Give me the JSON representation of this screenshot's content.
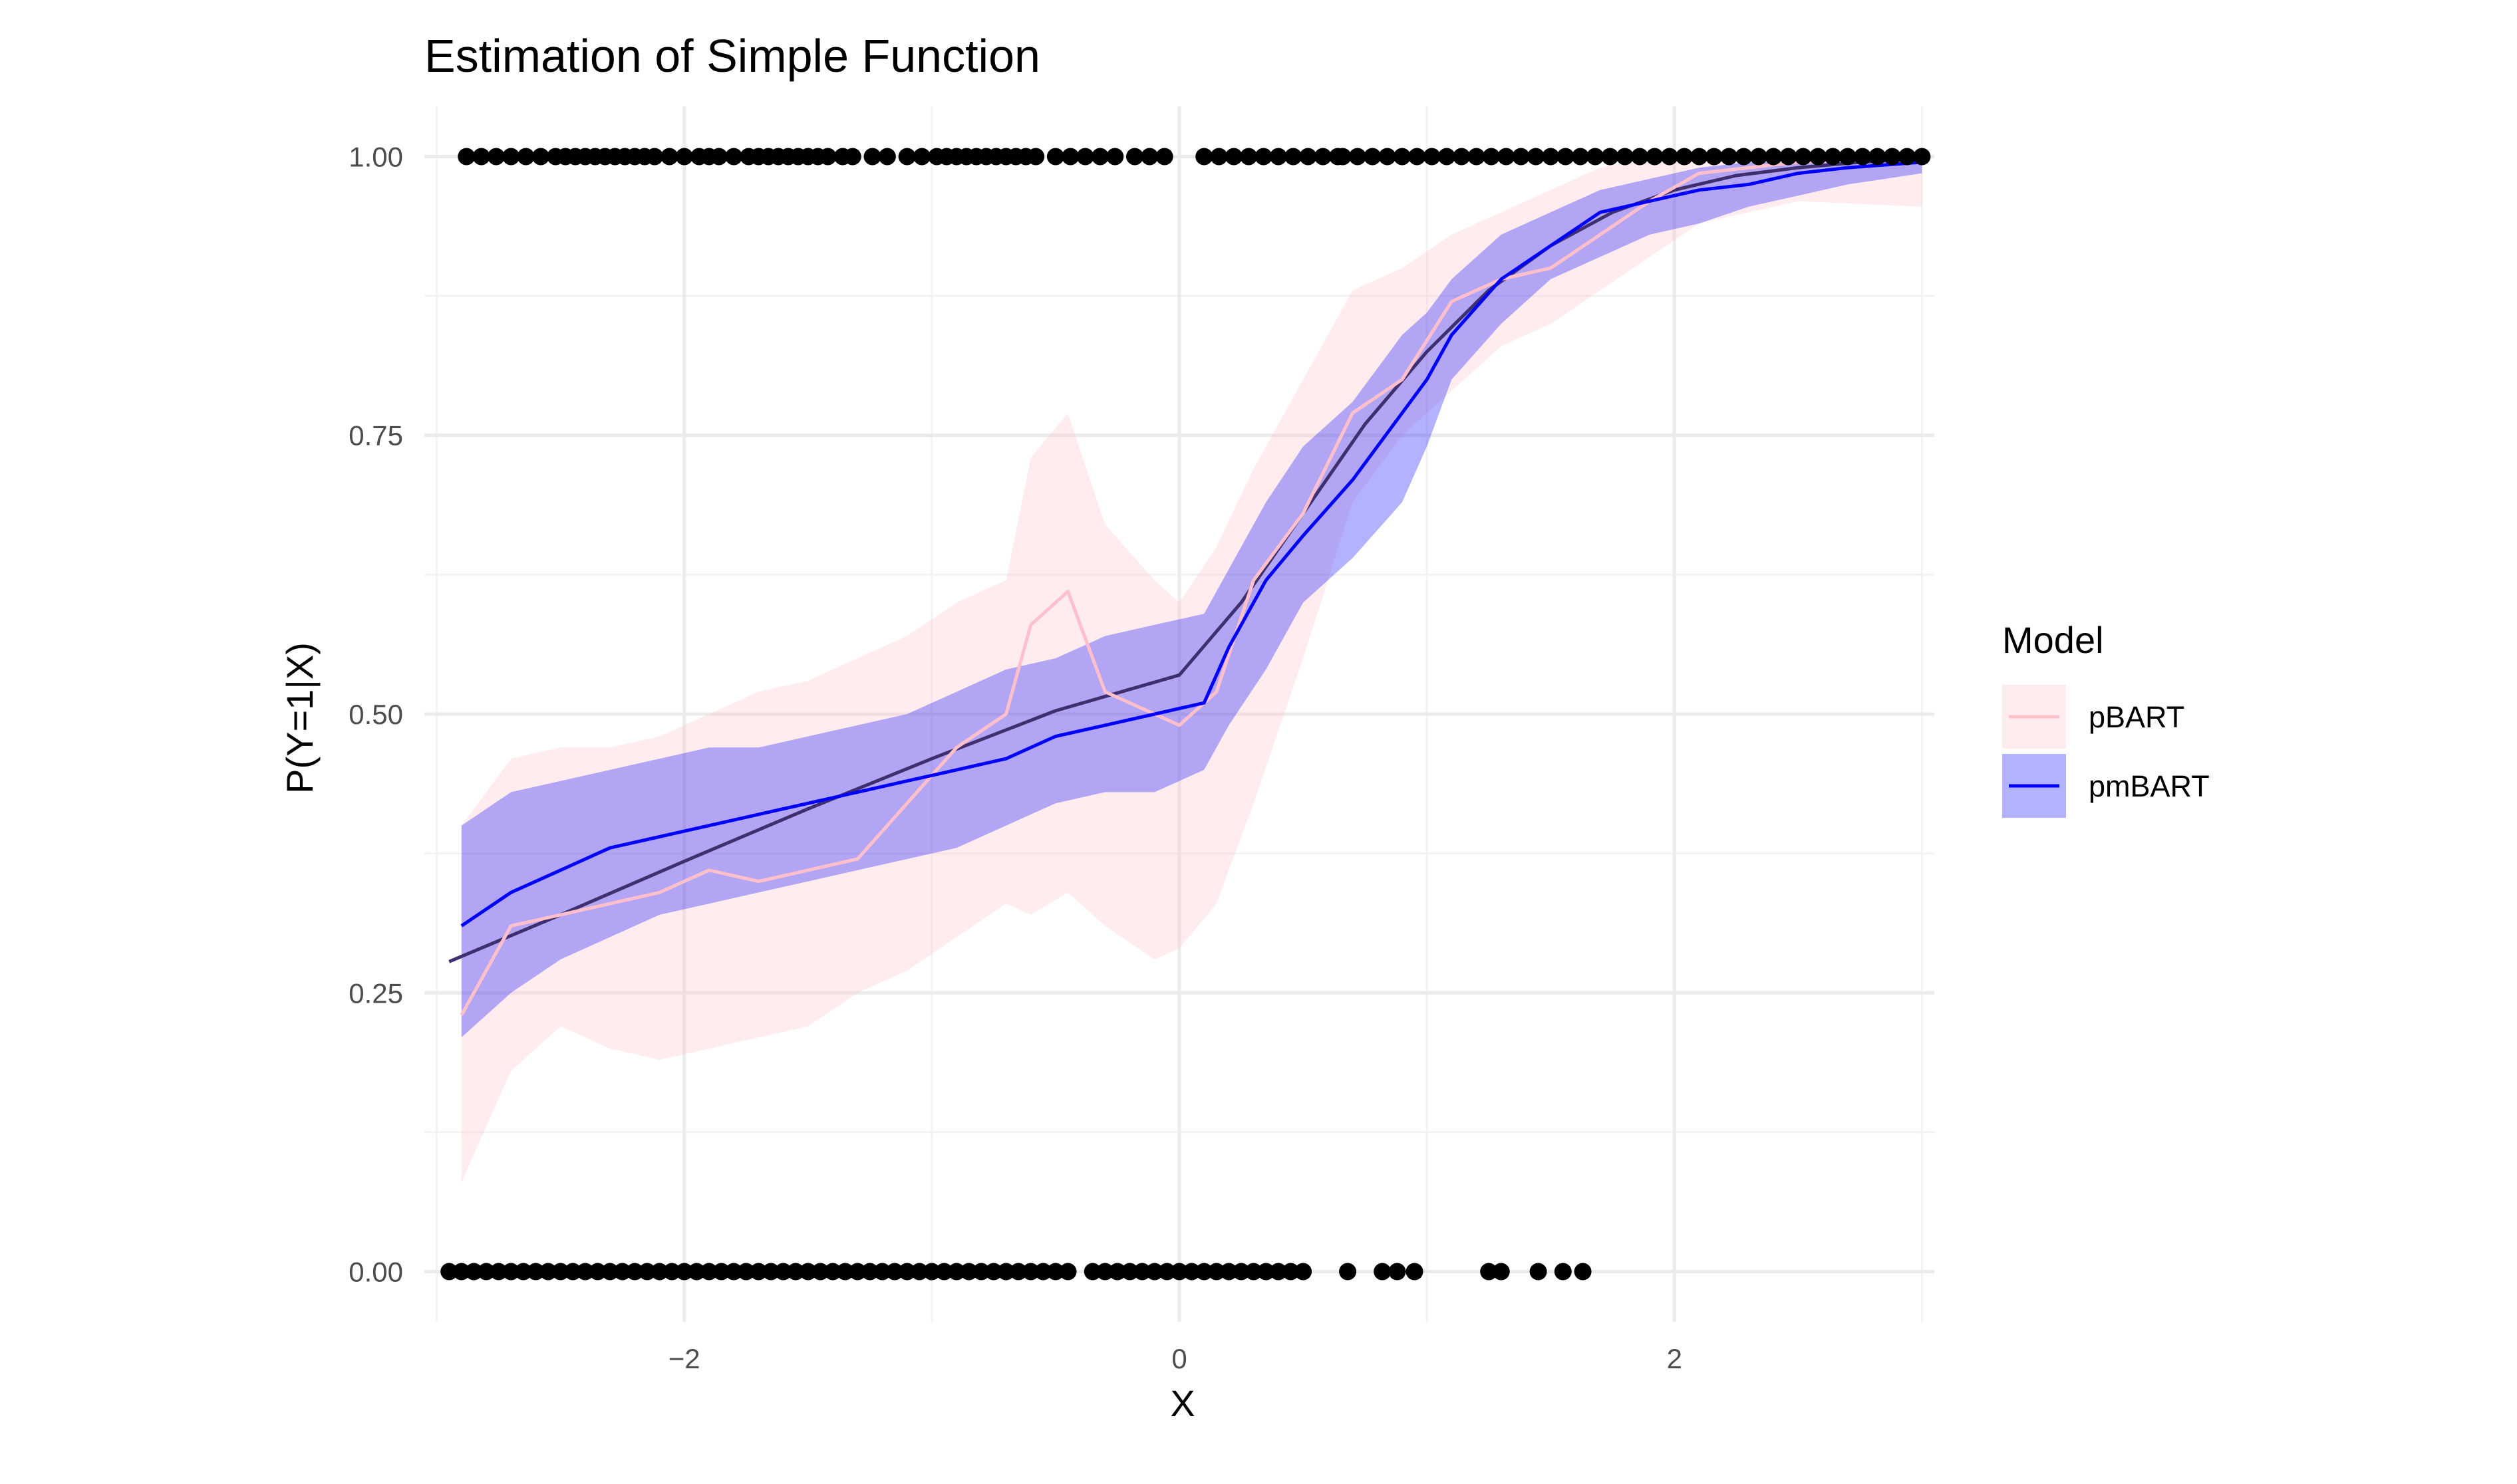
{
  "chart_data": {
    "type": "line",
    "title": "Estimation of Simple Function",
    "xlabel": "X",
    "ylabel": "P(Y=1|X)",
    "xlim": [
      -3.05,
      3.05
    ],
    "ylim": [
      -0.045,
      1.045
    ],
    "x_ticks": [
      -2,
      0,
      2
    ],
    "x_tick_labels": [
      "−2",
      "0",
      "2"
    ],
    "y_ticks": [
      0,
      0.25,
      0.5,
      0.75,
      1
    ],
    "y_tick_labels": [
      "0.00",
      "0.25",
      "0.50",
      "0.75",
      "1.00"
    ],
    "grid": true,
    "legend": {
      "title": "Model",
      "position": "right"
    },
    "colors": {
      "pBART_band": "#ffc0cb",
      "pBART_line": "#ffc0cb",
      "pmBART_band": "#0000ff",
      "pmBART_line": "#0000ff",
      "truth_line": "#3f2f6f",
      "points": "#000000"
    },
    "series": [
      {
        "name": "pBART",
        "x": [
          -2.9,
          -2.7,
          -2.5,
          -2.3,
          -2.1,
          -1.9,
          -1.7,
          -1.5,
          -1.3,
          -1.1,
          -0.9,
          -0.7,
          -0.6,
          -0.45,
          -0.3,
          -0.1,
          0.0,
          0.15,
          0.3,
          0.5,
          0.7,
          0.9,
          1.1,
          1.3,
          1.5,
          1.7,
          1.9,
          2.1,
          2.5,
          3.0
        ],
        "lower": [
          0.08,
          0.18,
          0.22,
          0.2,
          0.19,
          0.2,
          0.21,
          0.22,
          0.25,
          0.27,
          0.3,
          0.33,
          0.32,
          0.34,
          0.31,
          0.28,
          0.29,
          0.33,
          0.42,
          0.55,
          0.69,
          0.75,
          0.79,
          0.83,
          0.85,
          0.88,
          0.91,
          0.94,
          0.96,
          0.955
        ],
        "mean": [
          0.23,
          0.31,
          0.32,
          0.33,
          0.34,
          0.36,
          0.35,
          0.36,
          0.37,
          0.42,
          0.47,
          0.5,
          0.58,
          0.61,
          0.52,
          0.5,
          0.49,
          0.52,
          0.62,
          0.68,
          0.77,
          0.8,
          0.87,
          0.89,
          0.9,
          0.93,
          0.96,
          0.985,
          0.995,
          1.0
        ],
        "upper": [
          0.4,
          0.46,
          0.47,
          0.47,
          0.48,
          0.5,
          0.52,
          0.53,
          0.55,
          0.57,
          0.6,
          0.62,
          0.73,
          0.77,
          0.67,
          0.62,
          0.6,
          0.65,
          0.72,
          0.8,
          0.88,
          0.9,
          0.93,
          0.95,
          0.97,
          0.99,
          1.0,
          1.0,
          1.0,
          1.0
        ]
      },
      {
        "name": "pmBART",
        "x": [
          -2.9,
          -2.7,
          -2.5,
          -2.3,
          -2.1,
          -1.9,
          -1.7,
          -1.5,
          -1.3,
          -1.1,
          -0.9,
          -0.7,
          -0.5,
          -0.3,
          -0.1,
          0.1,
          0.2,
          0.35,
          0.5,
          0.7,
          0.9,
          1.0,
          1.1,
          1.3,
          1.5,
          1.7,
          1.9,
          2.1,
          2.3,
          2.5,
          2.7,
          3.0
        ],
        "lower": [
          0.21,
          0.25,
          0.28,
          0.3,
          0.32,
          0.33,
          0.34,
          0.35,
          0.36,
          0.37,
          0.38,
          0.4,
          0.42,
          0.43,
          0.43,
          0.45,
          0.49,
          0.54,
          0.6,
          0.64,
          0.69,
          0.74,
          0.8,
          0.85,
          0.89,
          0.91,
          0.93,
          0.94,
          0.955,
          0.965,
          0.975,
          0.985
        ],
        "mean": [
          0.31,
          0.34,
          0.36,
          0.38,
          0.39,
          0.4,
          0.41,
          0.42,
          0.43,
          0.44,
          0.45,
          0.46,
          0.48,
          0.49,
          0.5,
          0.51,
          0.56,
          0.62,
          0.66,
          0.71,
          0.77,
          0.8,
          0.84,
          0.89,
          0.92,
          0.95,
          0.96,
          0.97,
          0.975,
          0.985,
          0.99,
          0.995
        ],
        "upper": [
          0.4,
          0.43,
          0.44,
          0.45,
          0.46,
          0.47,
          0.47,
          0.48,
          0.49,
          0.5,
          0.52,
          0.54,
          0.55,
          0.57,
          0.58,
          0.59,
          0.63,
          0.69,
          0.74,
          0.78,
          0.84,
          0.86,
          0.89,
          0.93,
          0.95,
          0.97,
          0.98,
          0.99,
          0.995,
          0.995,
          0.997,
          0.998
        ]
      },
      {
        "name": "",
        "x": [
          -2.95,
          -2.5,
          -2.0,
          -1.5,
          -1.0,
          -0.5,
          0.0,
          0.25,
          0.5,
          0.75,
          1.0,
          1.25,
          1.5,
          1.75,
          2.0,
          2.25,
          2.5,
          2.75,
          3.0
        ],
        "mean": [
          0.278,
          0.32,
          0.368,
          0.415,
          0.46,
          0.503,
          0.535,
          0.6,
          0.68,
          0.76,
          0.825,
          0.88,
          0.92,
          0.95,
          0.97,
          0.983,
          0.99,
          0.995,
          0.998
        ]
      }
    ],
    "observations": {
      "y1_x": [
        -2.88,
        -2.82,
        -2.76,
        -2.7,
        -2.64,
        -2.58,
        -2.52,
        -2.48,
        -2.44,
        -2.4,
        -2.36,
        -2.32,
        -2.28,
        -2.24,
        -2.2,
        -2.16,
        -2.12,
        -2.06,
        -2.0,
        -1.94,
        -1.9,
        -1.86,
        -1.8,
        -1.74,
        -1.7,
        -1.66,
        -1.62,
        -1.58,
        -1.54,
        -1.5,
        -1.46,
        -1.42,
        -1.36,
        -1.32,
        -1.24,
        -1.18,
        -1.1,
        -1.04,
        -0.98,
        -0.94,
        -0.9,
        -0.86,
        -0.82,
        -0.78,
        -0.74,
        -0.7,
        -0.66,
        -0.62,
        -0.58,
        -0.5,
        -0.44,
        -0.38,
        -0.32,
        -0.26,
        -0.18,
        -0.12,
        -0.06,
        0.1,
        0.16,
        0.22,
        0.28,
        0.34,
        0.4,
        0.46,
        0.52,
        0.58,
        0.64,
        0.66,
        0.72,
        0.78,
        0.84,
        0.9,
        0.96,
        1.02,
        1.08,
        1.14,
        1.2,
        1.26,
        1.32,
        1.38,
        1.44,
        1.5,
        1.56,
        1.62,
        1.68,
        1.74,
        1.8,
        1.86,
        1.92,
        1.98,
        2.04,
        2.1,
        2.16,
        2.22,
        2.28,
        2.34,
        2.4,
        2.46,
        2.52,
        2.58,
        2.64,
        2.7,
        2.76,
        2.82,
        2.88,
        2.94,
        3.0
      ],
      "y0_x": [
        -2.95,
        -2.9,
        -2.85,
        -2.8,
        -2.75,
        -2.7,
        -2.65,
        -2.6,
        -2.55,
        -2.5,
        -2.45,
        -2.4,
        -2.35,
        -2.3,
        -2.25,
        -2.2,
        -2.15,
        -2.1,
        -2.05,
        -2.0,
        -1.95,
        -1.9,
        -1.85,
        -1.8,
        -1.75,
        -1.7,
        -1.65,
        -1.6,
        -1.55,
        -1.5,
        -1.45,
        -1.4,
        -1.35,
        -1.3,
        -1.25,
        -1.2,
        -1.15,
        -1.1,
        -1.05,
        -1.0,
        -0.95,
        -0.9,
        -0.85,
        -0.8,
        -0.75,
        -0.7,
        -0.65,
        -0.6,
        -0.55,
        -0.5,
        -0.45,
        -0.35,
        -0.3,
        -0.25,
        -0.2,
        -0.15,
        -0.1,
        -0.05,
        0.0,
        0.05,
        0.1,
        0.15,
        0.2,
        0.25,
        0.3,
        0.35,
        0.4,
        0.45,
        0.5,
        0.68,
        0.82,
        0.88,
        0.95,
        1.25,
        1.3,
        1.45,
        1.55,
        1.63
      ]
    }
  }
}
